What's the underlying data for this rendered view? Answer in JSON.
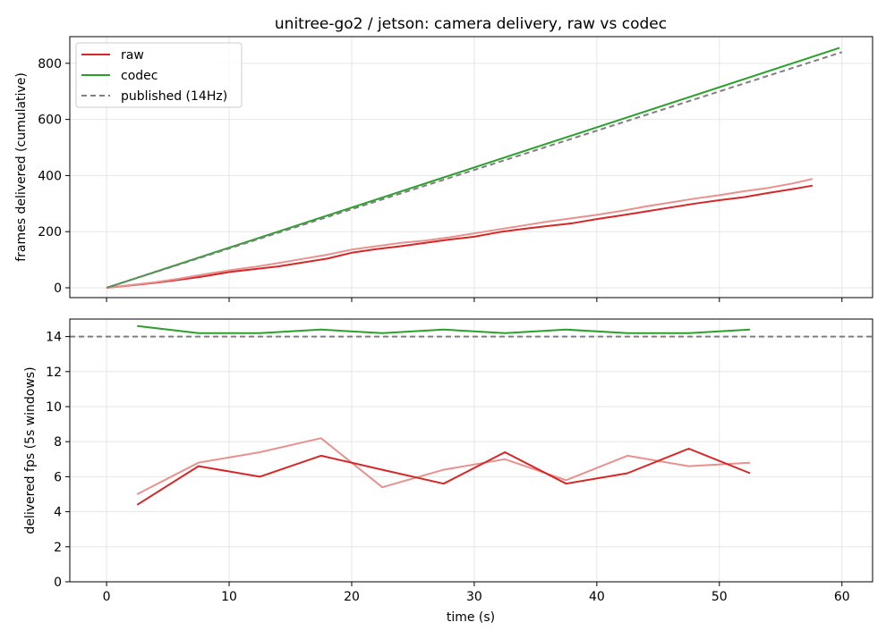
{
  "chart_data": [
    {
      "type": "line",
      "title": "unitree-go2 / jetson: camera delivery, raw vs codec",
      "xlabel": "",
      "ylabel": "frames delivered (cumulative)",
      "xlim": [
        -3,
        62.5
      ],
      "ylim": [
        -35,
        895
      ],
      "x_ticks": [
        0,
        10,
        20,
        30,
        40,
        50,
        60
      ],
      "y_ticks": [
        0,
        200,
        400,
        600,
        800
      ],
      "grid": true,
      "legend": "top-left",
      "legend_entries": [
        {
          "name": "raw",
          "color": "#d62728",
          "style": "solid"
        },
        {
          "name": "codec",
          "color": "#2ca02c",
          "style": "solid"
        },
        {
          "name": "published (14Hz)",
          "color": "#7f7f7f",
          "style": "dashed"
        }
      ],
      "series": [
        {
          "name": "raw",
          "color": "#d62728",
          "style": "solid",
          "x": [
            0,
            2,
            4,
            6,
            8,
            10,
            12,
            14,
            16,
            18,
            20,
            22,
            24,
            26,
            28,
            30,
            32,
            34,
            36,
            38,
            40,
            42,
            44,
            46,
            48,
            50,
            52,
            54,
            56,
            57.6
          ],
          "y": [
            0,
            9,
            18,
            29,
            41,
            56,
            66,
            76,
            90,
            104,
            125,
            138,
            148,
            160,
            172,
            182,
            198,
            210,
            220,
            230,
            245,
            258,
            272,
            286,
            300,
            312,
            323,
            338,
            352,
            364
          ]
        },
        {
          "name": "",
          "color": "#e8918f",
          "style": "solid",
          "x": [
            0,
            2,
            4,
            6,
            8,
            10,
            12,
            14,
            16,
            18,
            20,
            22,
            24,
            26,
            28,
            30,
            32,
            34,
            36,
            38,
            40,
            42,
            44,
            46,
            48,
            50,
            52,
            54,
            56,
            57.6
          ],
          "y": [
            0,
            10,
            20,
            33,
            48,
            62,
            74,
            88,
            103,
            118,
            136,
            148,
            160,
            168,
            180,
            194,
            208,
            222,
            236,
            248,
            260,
            274,
            290,
            304,
            318,
            330,
            344,
            356,
            372,
            388
          ]
        },
        {
          "name": "codec",
          "color": "#2ca02c",
          "style": "solid",
          "x": [
            0,
            59.8
          ],
          "y": [
            0,
            855
          ]
        },
        {
          "name": "published (14Hz)",
          "color": "#7f7f7f",
          "style": "dashed",
          "x": [
            0,
            60
          ],
          "y": [
            0,
            840
          ]
        }
      ]
    },
    {
      "type": "line",
      "title": "",
      "xlabel": "time (s)",
      "ylabel": "delivered fps (5s windows)",
      "xlim": [
        -3,
        62.5
      ],
      "ylim": [
        0,
        15
      ],
      "x_ticks": [
        0,
        10,
        20,
        30,
        40,
        50,
        60
      ],
      "y_ticks": [
        0,
        2,
        4,
        6,
        8,
        10,
        12,
        14
      ],
      "grid": true,
      "series": [
        {
          "name": "codec",
          "color": "#2ca02c",
          "style": "solid",
          "x": [
            2.5,
            7.5,
            12.5,
            17.5,
            22.5,
            27.5,
            32.5,
            37.5,
            42.5,
            47.5,
            52.5
          ],
          "y": [
            14.6,
            14.2,
            14.2,
            14.4,
            14.2,
            14.4,
            14.2,
            14.4,
            14.2,
            14.2,
            14.4
          ]
        },
        {
          "name": "published (14Hz)",
          "color": "#7f7f7f",
          "style": "dashed",
          "x": [
            -3,
            62.5
          ],
          "y": [
            14,
            14
          ]
        },
        {
          "name": "",
          "color": "#e8918f",
          "style": "solid",
          "x": [
            2.5,
            7.5,
            12.5,
            17.5,
            22.5,
            27.5,
            32.5,
            37.5,
            42.5,
            47.5,
            52.5
          ],
          "y": [
            5.0,
            6.8,
            7.4,
            8.2,
            5.4,
            6.4,
            7.0,
            5.8,
            7.2,
            6.6,
            6.8
          ]
        },
        {
          "name": "raw",
          "color": "#d62728",
          "style": "solid",
          "x": [
            2.5,
            7.5,
            12.5,
            17.5,
            22.5,
            27.5,
            32.5,
            37.5,
            42.5,
            47.5,
            52.5
          ],
          "y": [
            4.4,
            6.6,
            6.0,
            7.2,
            6.4,
            5.6,
            7.4,
            5.6,
            6.2,
            7.6,
            6.2
          ]
        }
      ]
    }
  ]
}
